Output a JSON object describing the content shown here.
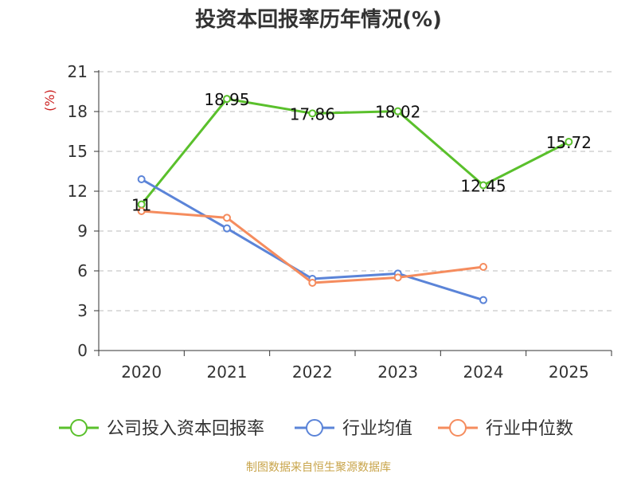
{
  "chart_data": {
    "type": "line",
    "title": "投资本回报率历年情况(%)",
    "ylabel": "(%)",
    "categories": [
      "2020",
      "2021",
      "2022",
      "2023",
      "2024",
      "2025"
    ],
    "ylim": [
      0,
      21
    ],
    "yticks": [
      0,
      3,
      6,
      9,
      12,
      15,
      18,
      21
    ],
    "grid": true,
    "legend_position": "bottom",
    "series": [
      {
        "name": "公司投入资本回报率",
        "color": "#5ac02c",
        "values": [
          11,
          18.95,
          17.86,
          18.02,
          12.45,
          15.72
        ],
        "labels": [
          "11",
          "18.95",
          "17.86",
          "18.02",
          "12.45",
          "15.72"
        ]
      },
      {
        "name": "行业均值",
        "color": "#5b84d8",
        "values": [
          12.9,
          9.2,
          5.4,
          5.8,
          3.8,
          null
        ]
      },
      {
        "name": "行业中位数",
        "color": "#f58c5e",
        "values": [
          10.5,
          10.0,
          5.1,
          5.5,
          6.3,
          null
        ]
      }
    ]
  },
  "source": "制图数据来自恒生聚源数据库"
}
